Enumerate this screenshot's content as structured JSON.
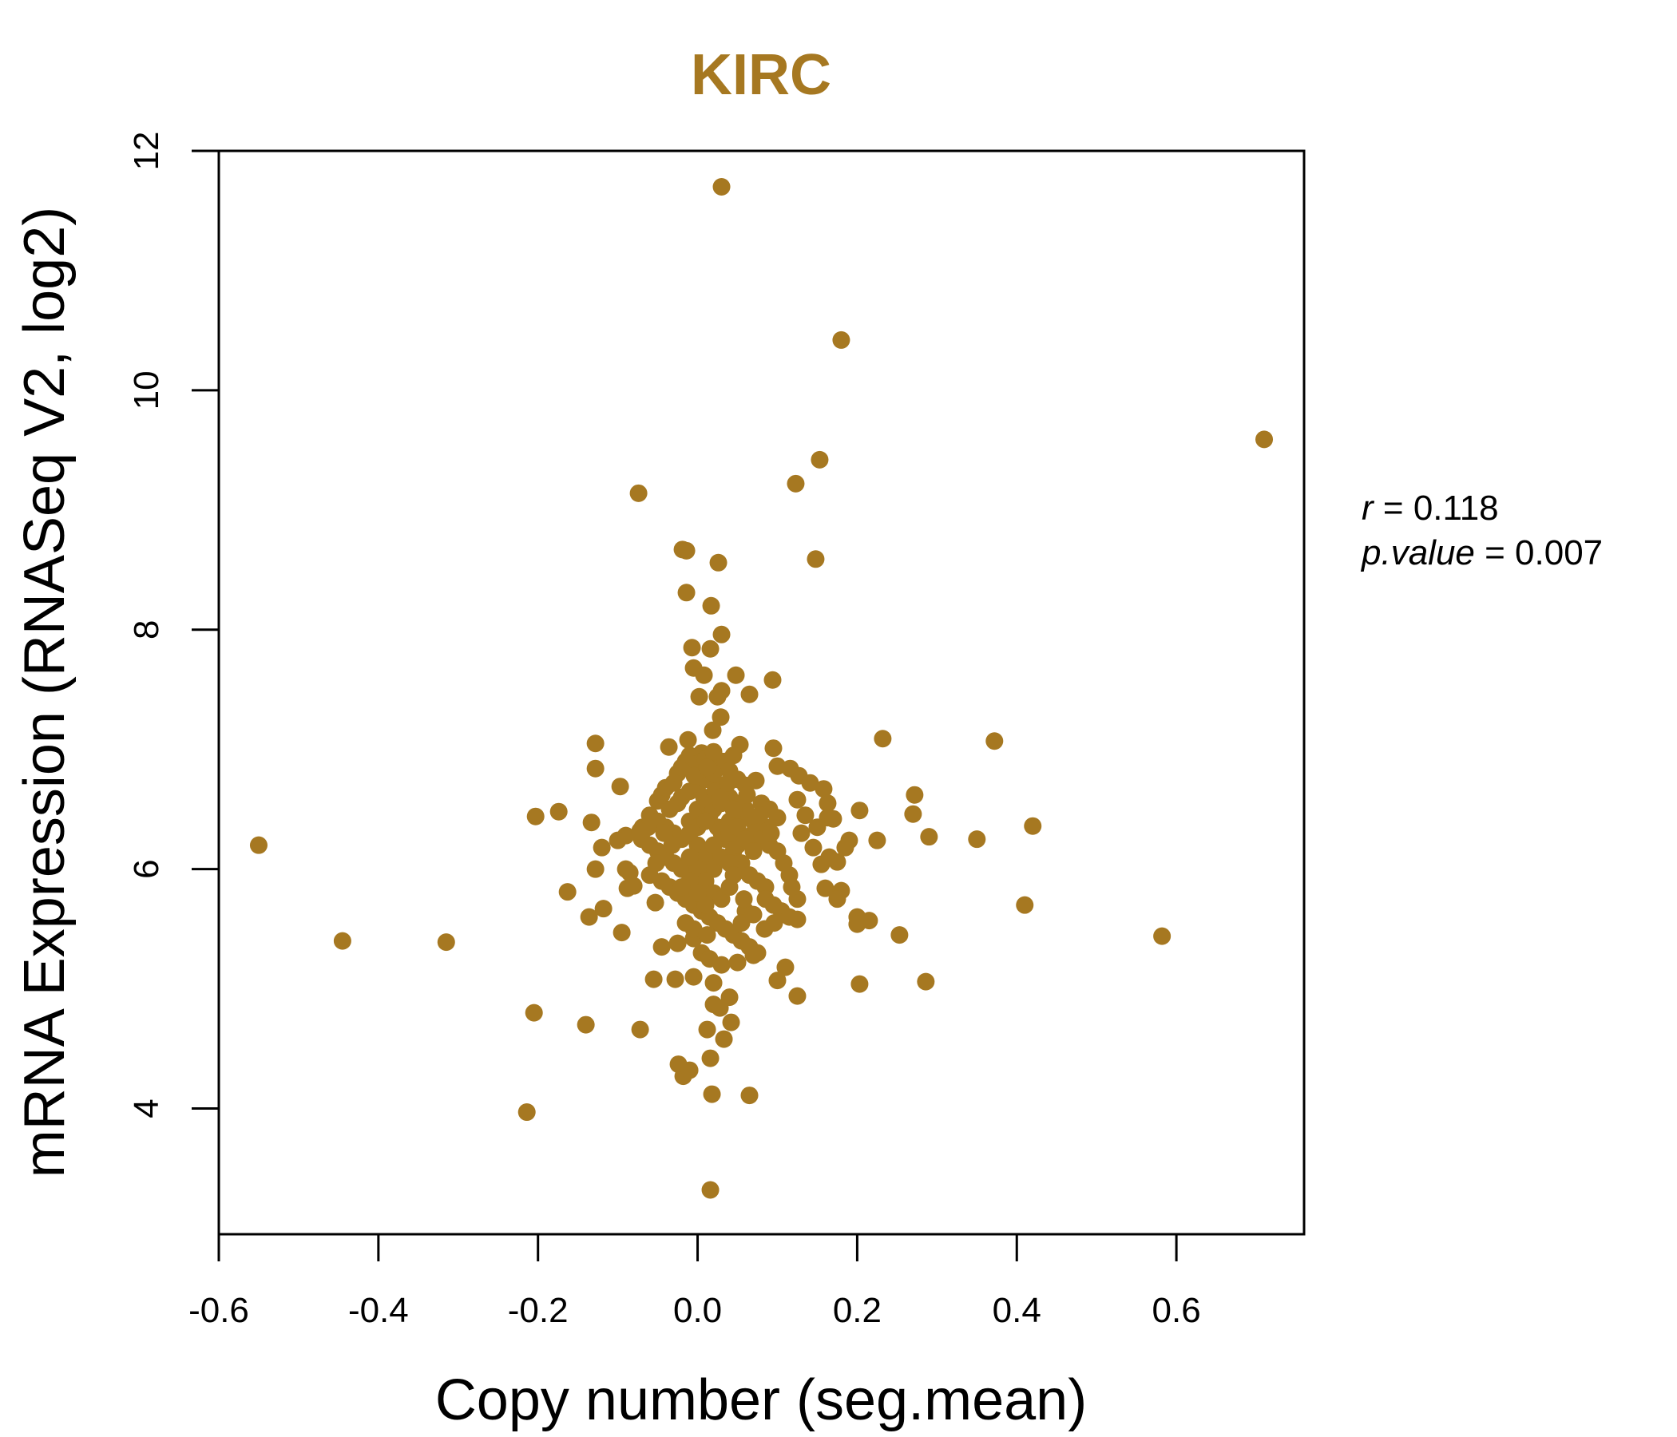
{
  "chart_data": {
    "type": "scatter",
    "title": "KIRC",
    "xlabel": "Copy number (seg.mean)",
    "ylabel": "mRNA Expression (RNASeq V2, log2)",
    "xlim": [
      -0.6,
      0.76
    ],
    "ylim": [
      2.95,
      12.0
    ],
    "xticks": [
      "-0.6",
      "-0.4",
      "-0.2",
      "0.0",
      "0.2",
      "0.4",
      "0.6"
    ],
    "yticks": [
      "4",
      "6",
      "8",
      "10",
      "12"
    ],
    "grid": false,
    "color": "#A67821",
    "stats": {
      "r_label": "r",
      "r_value": "0.118",
      "p_label": "p.value",
      "p_value": "0.007"
    },
    "points": [
      [
        0.03,
        11.7
      ],
      [
        0.18,
        10.42
      ],
      [
        0.71,
        9.59
      ],
      [
        0.153,
        9.42
      ],
      [
        0.123,
        9.22
      ],
      [
        -0.074,
        9.14
      ],
      [
        -0.019,
        8.67
      ],
      [
        -0.014,
        8.66
      ],
      [
        0.026,
        8.56
      ],
      [
        0.148,
        8.59
      ],
      [
        -0.014,
        8.31
      ],
      [
        0.017,
        8.2
      ],
      [
        0.03,
        7.96
      ],
      [
        -0.007,
        7.85
      ],
      [
        0.016,
        7.84
      ],
      [
        -0.005,
        7.68
      ],
      [
        0.008,
        7.62
      ],
      [
        0.048,
        7.62
      ],
      [
        0.094,
        7.58
      ],
      [
        0.002,
        7.44
      ],
      [
        0.025,
        7.44
      ],
      [
        0.03,
        7.49
      ],
      [
        0.065,
        7.46
      ],
      [
        0.029,
        7.27
      ],
      [
        0.019,
        7.16
      ],
      [
        0.232,
        7.09
      ],
      [
        0.372,
        7.07
      ],
      [
        -0.128,
        7.05
      ],
      [
        -0.036,
        7.02
      ],
      [
        0.053,
        7.04
      ],
      [
        0.095,
        7.01
      ],
      [
        -0.012,
        7.08
      ],
      [
        0.045,
        6.95
      ],
      [
        0.005,
        6.97
      ],
      [
        0.03,
        6.9
      ],
      [
        0.073,
        6.74
      ],
      [
        0.1,
        6.86
      ],
      [
        0.116,
        6.84
      ],
      [
        0.127,
        6.78
      ],
      [
        -0.128,
        6.84
      ],
      [
        -0.097,
        6.69
      ],
      [
        0.141,
        6.72
      ],
      [
        0.158,
        6.67
      ],
      [
        0.272,
        6.62
      ],
      [
        0.125,
        6.58
      ],
      [
        0.163,
        6.55
      ],
      [
        0.203,
        6.49
      ],
      [
        0.27,
        6.46
      ],
      [
        0.163,
        6.43
      ],
      [
        0.17,
        6.42
      ],
      [
        -0.174,
        6.48
      ],
      [
        -0.203,
        6.44
      ],
      [
        -0.133,
        6.39
      ],
      [
        -0.069,
        6.35
      ],
      [
        -0.05,
        6.57
      ],
      [
        -0.045,
        6.62
      ],
      [
        -0.04,
        6.68
      ],
      [
        -0.03,
        6.72
      ],
      [
        -0.025,
        6.8
      ],
      [
        -0.02,
        6.85
      ],
      [
        -0.015,
        6.9
      ],
      [
        -0.01,
        6.95
      ],
      [
        0.0,
        6.88
      ],
      [
        0.01,
        6.92
      ],
      [
        0.02,
        6.98
      ],
      [
        0.035,
        6.9
      ],
      [
        0.04,
        6.82
      ],
      [
        0.05,
        6.75
      ],
      [
        0.06,
        6.7
      ],
      [
        0.08,
        6.55
      ],
      [
        0.09,
        6.5
      ],
      [
        0.1,
        6.43
      ],
      [
        0.085,
        6.35
      ],
      [
        0.07,
        6.4
      ],
      [
        0.06,
        6.45
      ],
      [
        -0.06,
        6.45
      ],
      [
        -0.05,
        6.4
      ],
      [
        -0.04,
        6.35
      ],
      [
        -0.03,
        6.3
      ],
      [
        -0.035,
        6.5
      ],
      [
        -0.025,
        6.55
      ],
      [
        -0.02,
        6.6
      ],
      [
        -0.01,
        6.65
      ],
      [
        0.0,
        6.7
      ],
      [
        0.01,
        6.75
      ],
      [
        0.02,
        6.8
      ],
      [
        0.03,
        6.7
      ],
      [
        0.04,
        6.6
      ],
      [
        0.05,
        6.55
      ],
      [
        0.06,
        6.5
      ],
      [
        0.07,
        6.3
      ],
      [
        0.08,
        6.25
      ],
      [
        0.09,
        6.2
      ],
      [
        0.1,
        6.15
      ],
      [
        -0.07,
        6.25
      ],
      [
        -0.06,
        6.2
      ],
      [
        -0.05,
        6.15
      ],
      [
        -0.04,
        6.1
      ],
      [
        -0.03,
        6.05
      ],
      [
        -0.02,
        6.0
      ],
      [
        -0.01,
        6.4
      ],
      [
        0.0,
        6.5
      ],
      [
        0.01,
        6.55
      ],
      [
        0.015,
        6.45
      ],
      [
        0.025,
        6.35
      ],
      [
        0.035,
        6.25
      ],
      [
        0.045,
        6.15
      ],
      [
        0.055,
        6.05
      ],
      [
        0.065,
        5.95
      ],
      [
        0.075,
        5.9
      ],
      [
        0.085,
        5.85
      ],
      [
        -0.09,
        6.28
      ],
      [
        -0.1,
        6.24
      ],
      [
        -0.12,
        6.18
      ],
      [
        0.13,
        6.3
      ],
      [
        0.145,
        6.18
      ],
      [
        0.155,
        6.04
      ],
      [
        0.175,
        6.06
      ],
      [
        0.185,
        6.18
      ],
      [
        0.19,
        6.24
      ],
      [
        0.225,
        6.24
      ],
      [
        0.29,
        6.27
      ],
      [
        0.35,
        6.25
      ],
      [
        0.42,
        6.36
      ],
      [
        -0.55,
        6.2
      ],
      [
        -0.09,
        6.0
      ],
      [
        -0.085,
        5.97
      ],
      [
        -0.128,
        6.0
      ],
      [
        -0.088,
        5.84
      ],
      [
        -0.08,
        5.86
      ],
      [
        -0.163,
        5.81
      ],
      [
        -0.118,
        5.67
      ],
      [
        -0.136,
        5.6
      ],
      [
        -0.095,
        5.47
      ],
      [
        -0.053,
        5.72
      ],
      [
        -0.06,
        5.95
      ],
      [
        -0.045,
        5.9
      ],
      [
        -0.035,
        5.85
      ],
      [
        -0.025,
        5.8
      ],
      [
        -0.015,
        5.75
      ],
      [
        -0.005,
        5.7
      ],
      [
        0.005,
        5.65
      ],
      [
        0.015,
        5.6
      ],
      [
        0.025,
        5.55
      ],
      [
        0.035,
        5.5
      ],
      [
        0.045,
        5.45
      ],
      [
        0.055,
        5.4
      ],
      [
        0.065,
        5.35
      ],
      [
        0.075,
        5.3
      ],
      [
        0.085,
        5.75
      ],
      [
        0.095,
        5.7
      ],
      [
        0.105,
        5.65
      ],
      [
        0.115,
        5.6
      ],
      [
        0.125,
        5.58
      ],
      [
        0.115,
        5.95
      ],
      [
        0.125,
        5.75
      ],
      [
        0.16,
        5.84
      ],
      [
        0.18,
        5.82
      ],
      [
        0.175,
        5.75
      ],
      [
        0.2,
        5.6
      ],
      [
        0.215,
        5.57
      ],
      [
        0.2,
        5.54
      ],
      [
        0.253,
        5.45
      ],
      [
        0.41,
        5.7
      ],
      [
        0.582,
        5.44
      ],
      [
        -0.045,
        5.35
      ],
      [
        -0.025,
        5.38
      ],
      [
        -0.005,
        5.42
      ],
      [
        0.005,
        5.3
      ],
      [
        0.015,
        5.25
      ],
      [
        0.03,
        5.2
      ],
      [
        0.05,
        5.22
      ],
      [
        0.07,
        5.28
      ],
      [
        0.11,
        5.18
      ],
      [
        -0.445,
        5.4
      ],
      [
        -0.315,
        5.39
      ],
      [
        -0.055,
        5.08
      ],
      [
        -0.028,
        5.08
      ],
      [
        -0.005,
        5.1
      ],
      [
        0.02,
        5.05
      ],
      [
        0.04,
        4.93
      ],
      [
        0.1,
        5.07
      ],
      [
        0.125,
        4.94
      ],
      [
        0.203,
        5.04
      ],
      [
        0.286,
        5.06
      ],
      [
        0.02,
        4.87
      ],
      [
        0.028,
        4.84
      ],
      [
        0.042,
        4.72
      ],
      [
        0.012,
        4.66
      ],
      [
        0.033,
        4.58
      ],
      [
        -0.205,
        4.8
      ],
      [
        -0.14,
        4.7
      ],
      [
        -0.072,
        4.66
      ],
      [
        -0.024,
        4.37
      ],
      [
        -0.018,
        4.27
      ],
      [
        -0.01,
        4.32
      ],
      [
        0.016,
        4.42
      ],
      [
        0.018,
        4.12
      ],
      [
        0.065,
        4.11
      ],
      [
        -0.214,
        3.97
      ],
      [
        0.016,
        3.32
      ],
      [
        0.0,
        6.2
      ],
      [
        0.01,
        6.1
      ],
      [
        0.02,
        6.0
      ],
      [
        0.03,
        6.3
      ],
      [
        0.04,
        6.4
      ],
      [
        0.0,
        6.0
      ],
      [
        0.01,
        5.9
      ],
      [
        0.02,
        6.2
      ],
      [
        0.03,
        6.1
      ],
      [
        -0.01,
        6.1
      ],
      [
        -0.02,
        6.25
      ],
      [
        0.04,
        6.05
      ],
      [
        0.05,
        6.2
      ],
      [
        0.0,
        6.35
      ],
      [
        0.02,
        6.5
      ],
      [
        0.03,
        6.55
      ],
      [
        -0.01,
        6.3
      ],
      [
        0.01,
        6.4
      ],
      [
        0.04,
        6.3
      ],
      [
        0.05,
        6.35
      ],
      [
        0.06,
        6.25
      ],
      [
        0.07,
        6.15
      ],
      [
        0.02,
        5.8
      ],
      [
        0.03,
        5.75
      ],
      [
        0.04,
        5.85
      ],
      [
        0.01,
        5.7
      ],
      [
        0.0,
        5.8
      ],
      [
        -0.01,
        5.9
      ],
      [
        -0.02,
        5.85
      ],
      [
        0.06,
        5.65
      ],
      [
        0.055,
        5.55
      ],
      [
        0.045,
        5.95
      ],
      [
        0.008,
        6.6
      ],
      [
        0.022,
        6.65
      ],
      [
        0.038,
        6.72
      ],
      [
        -0.004,
        6.78
      ],
      [
        0.012,
        6.85
      ],
      [
        0.028,
        6.6
      ],
      [
        0.045,
        6.5
      ],
      [
        0.062,
        6.62
      ],
      [
        0.078,
        6.45
      ],
      [
        0.092,
        6.3
      ],
      [
        0.108,
        6.05
      ],
      [
        0.118,
        5.85
      ],
      [
        0.096,
        5.55
      ],
      [
        0.084,
        5.5
      ],
      [
        0.07,
        5.62
      ],
      [
        0.058,
        5.75
      ],
      [
        -0.015,
        5.55
      ],
      [
        -0.005,
        5.5
      ],
      [
        0.012,
        5.45
      ],
      [
        -0.032,
        6.2
      ],
      [
        -0.042,
        6.3
      ],
      [
        -0.052,
        6.05
      ],
      [
        -0.062,
        6.35
      ],
      [
        -0.072,
        6.32
      ],
      [
        0.135,
        6.45
      ],
      [
        0.15,
        6.35
      ],
      [
        0.165,
        6.1
      ]
    ]
  }
}
